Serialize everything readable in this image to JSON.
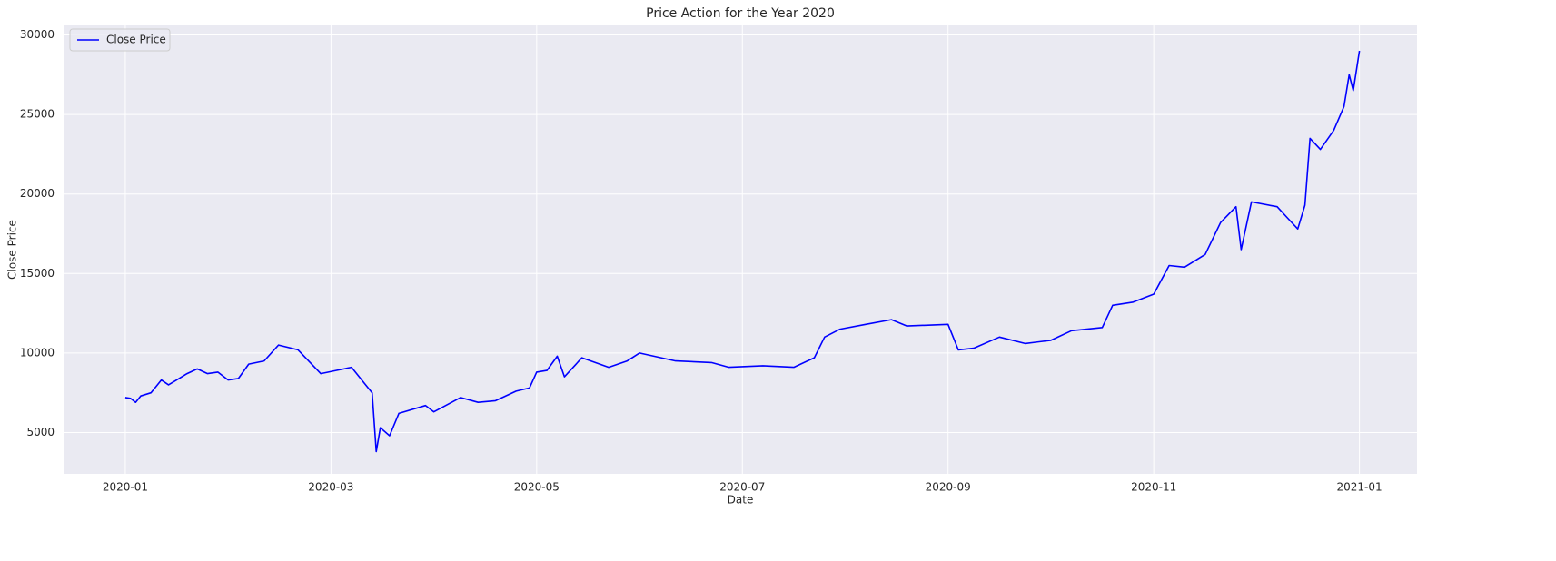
{
  "chart_data": {
    "type": "line",
    "title": "Price Action for the Year 2020",
    "x_label": "Date",
    "y_label": "Close Price",
    "legend": "upper left",
    "grid": true,
    "xlim": [
      -0.6,
      12.56
    ],
    "xticks": [
      {
        "value": 0,
        "label": "2020-01"
      },
      {
        "value": 2,
        "label": "2020-03"
      },
      {
        "value": 4,
        "label": "2020-05"
      },
      {
        "value": 6,
        "label": "2020-07"
      },
      {
        "value": 8,
        "label": "2020-09"
      },
      {
        "value": 10,
        "label": "2020-11"
      },
      {
        "value": 12,
        "label": "2021-01"
      }
    ],
    "ylim": [
      2400,
      30600
    ],
    "yticks": [
      5000,
      10000,
      15000,
      20000,
      25000,
      30000
    ],
    "x": [
      0,
      0.05,
      0.1,
      0.15,
      0.25,
      0.35,
      0.42,
      0.5,
      0.6,
      0.7,
      0.8,
      0.9,
      1.0,
      1.1,
      1.2,
      1.35,
      1.49,
      1.68,
      1.9,
      2.05,
      2.2,
      2.35,
      2.4,
      2.44,
      2.48,
      2.57,
      2.66,
      2.92,
      3.0,
      3.26,
      3.43,
      3.6,
      3.8,
      3.93,
      4.0,
      4.1,
      4.2,
      4.27,
      4.44,
      4.7,
      4.88,
      5.0,
      5.35,
      5.7,
      5.87,
      6.2,
      6.5,
      6.7,
      6.8,
      6.95,
      7.2,
      7.45,
      7.6,
      8.0,
      8.1,
      8.25,
      8.5,
      8.75,
      9.0,
      9.2,
      9.5,
      9.6,
      9.8,
      10.0,
      10.15,
      10.3,
      10.5,
      10.65,
      10.8,
      10.85,
      10.95,
      11.2,
      11.3,
      11.4,
      11.47,
      11.52,
      11.62,
      11.75,
      11.85,
      11.9,
      11.94,
      12.0
    ],
    "series": [
      {
        "name": "Close Price",
        "color": "#0000ff",
        "values": [
          7200,
          7150,
          6900,
          7300,
          7500,
          8300,
          8000,
          8300,
          8700,
          9000,
          8700,
          8800,
          8300,
          8400,
          9300,
          9500,
          10500,
          10200,
          8700,
          8900,
          9100,
          7900,
          7500,
          3800,
          5300,
          4800,
          6200,
          6700,
          6300,
          7200,
          6900,
          7000,
          7600,
          7800,
          8800,
          8900,
          9800,
          8500,
          9700,
          9100,
          9500,
          10000,
          9500,
          9400,
          9100,
          9200,
          9100,
          9700,
          11000,
          11500,
          11800,
          12100,
          11700,
          11800,
          10200,
          10300,
          11000,
          10600,
          10800,
          11400,
          11600,
          13000,
          13200,
          13700,
          15500,
          15400,
          16200,
          18200,
          19200,
          16500,
          19500,
          19200,
          18500,
          17800,
          19300,
          23500,
          22800,
          24000,
          25500,
          27500,
          26500,
          29000
        ]
      }
    ]
  }
}
